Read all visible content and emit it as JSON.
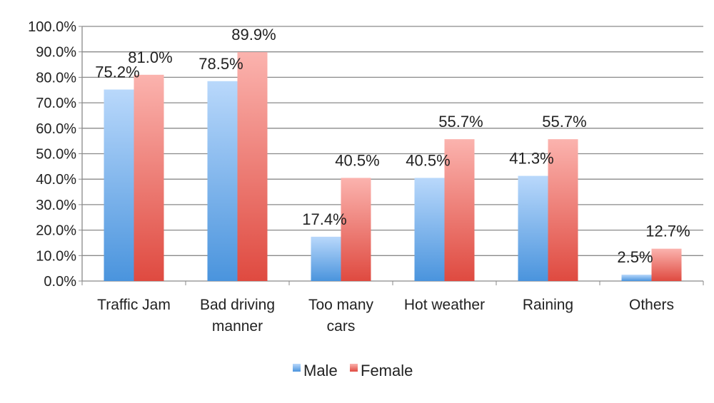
{
  "chart_data": {
    "type": "bar",
    "categories": [
      [
        "Traffic Jam"
      ],
      [
        "Bad driving",
        "manner"
      ],
      [
        "Too many",
        "cars"
      ],
      [
        "Hot weather"
      ],
      [
        "Raining"
      ],
      [
        "Others"
      ]
    ],
    "series": [
      {
        "name": "Male",
        "values": [
          75.2,
          78.5,
          17.4,
          40.5,
          41.3,
          2.5
        ],
        "labels": [
          "75.2%",
          "78.5%",
          "17.4%",
          "40.5%",
          "41.3%",
          "2.5%"
        ],
        "color_top": "#b9d8fb",
        "color_bottom": "#4a94dd"
      },
      {
        "name": "Female",
        "values": [
          81.0,
          89.9,
          40.5,
          55.7,
          55.7,
          12.7
        ],
        "labels": [
          "81.0%",
          "89.9%",
          "40.5%",
          "55.7%",
          "55.7%",
          "12.7%"
        ],
        "color_top": "#fbb3ae",
        "color_bottom": "#df4a40"
      }
    ],
    "yticks": [
      "0.0%",
      "10.0%",
      "20.0%",
      "30.0%",
      "40.0%",
      "50.0%",
      "60.0%",
      "70.0%",
      "80.0%",
      "90.0%",
      "100.0%"
    ],
    "ylim": [
      0,
      100
    ],
    "grid": true,
    "legend": "bottom"
  }
}
